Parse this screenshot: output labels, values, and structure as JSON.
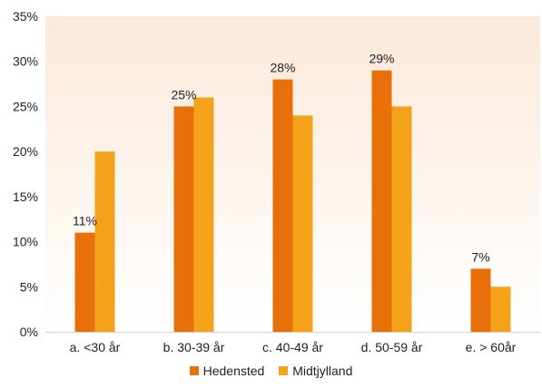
{
  "chart_data": {
    "type": "bar",
    "categories": [
      "a. <30 år",
      "b. 30-39 år",
      "c. 40-49 år",
      "d. 50-59 år",
      "e. > 60år"
    ],
    "series": [
      {
        "name": "Hedensted",
        "values": [
          11,
          25,
          28,
          29,
          7
        ],
        "color": "#E8700A",
        "labels": [
          "11%",
          "25%",
          "28%",
          "29%",
          "7%"
        ]
      },
      {
        "name": "Midtjylland",
        "values": [
          20,
          26,
          24,
          25,
          5
        ],
        "color": "#F4A21A"
      }
    ],
    "ylim": [
      0,
      35
    ],
    "yticks": [
      "0%",
      "5%",
      "10%",
      "15%",
      "20%",
      "25%",
      "30%",
      "35%"
    ],
    "ytick_values": [
      0,
      5,
      10,
      15,
      20,
      25,
      30,
      35
    ],
    "ylabel": "",
    "xlabel": "",
    "grid": false,
    "legend_position": "bottom",
    "background_gradient": [
      "#FBE9DA",
      "#FFFFFF"
    ]
  }
}
